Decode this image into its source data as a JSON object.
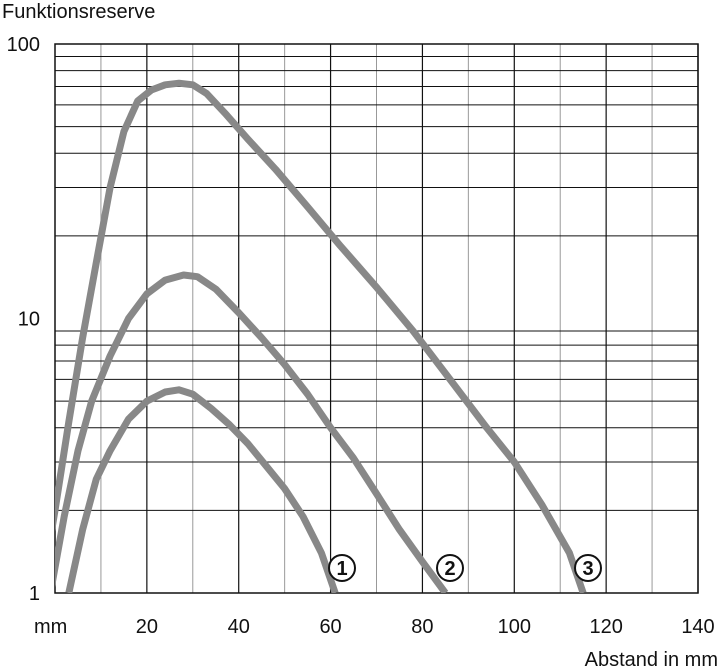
{
  "chart_data": {
    "type": "line",
    "title": "",
    "ylabel": "Funktionsreserve",
    "xlabel": "Abstand in mm",
    "x_unit_label": "mm",
    "yscale": "log",
    "xlim": [
      0,
      140
    ],
    "ylim": [
      1,
      100
    ],
    "x_ticks": [
      20,
      40,
      60,
      80,
      100,
      120,
      140
    ],
    "y_ticks": [
      1,
      10,
      100
    ],
    "grid": true,
    "line_color": "#888888",
    "series": [
      {
        "name": "①",
        "points": [
          [
            3,
            1.0
          ],
          [
            6,
            1.7
          ],
          [
            9,
            2.6
          ],
          [
            12,
            3.3
          ],
          [
            16,
            4.3
          ],
          [
            20,
            5.0
          ],
          [
            24,
            5.4
          ],
          [
            27,
            5.5
          ],
          [
            30,
            5.3
          ],
          [
            34,
            4.7
          ],
          [
            38,
            4.1
          ],
          [
            42,
            3.5
          ],
          [
            46,
            2.9
          ],
          [
            50,
            2.4
          ],
          [
            54,
            1.9
          ],
          [
            58,
            1.4
          ],
          [
            61,
            1.0
          ]
        ]
      },
      {
        "name": "②",
        "points": [
          [
            -1,
            1.0
          ],
          [
            2,
            1.9
          ],
          [
            5,
            3.3
          ],
          [
            8,
            5.0
          ],
          [
            12,
            7.3
          ],
          [
            16,
            10.0
          ],
          [
            20,
            12.3
          ],
          [
            24,
            13.8
          ],
          [
            28,
            14.4
          ],
          [
            31,
            14.2
          ],
          [
            35,
            12.8
          ],
          [
            40,
            10.5
          ],
          [
            45,
            8.5
          ],
          [
            50,
            6.8
          ],
          [
            55,
            5.3
          ],
          [
            60,
            4.0
          ],
          [
            65,
            3.1
          ],
          [
            70,
            2.3
          ],
          [
            75,
            1.7
          ],
          [
            80,
            1.3
          ],
          [
            85,
            1.0
          ]
        ]
      },
      {
        "name": "③",
        "points": [
          [
            -3,
            1.0
          ],
          [
            0,
            2.0
          ],
          [
            3,
            4.2
          ],
          [
            6,
            8.5
          ],
          [
            9,
            16.0
          ],
          [
            12,
            30.0
          ],
          [
            15,
            48.0
          ],
          [
            18,
            62.0
          ],
          [
            21,
            68.0
          ],
          [
            24,
            71.0
          ],
          [
            27,
            72.0
          ],
          [
            30,
            71.0
          ],
          [
            33,
            66.0
          ],
          [
            37,
            56.0
          ],
          [
            42,
            45.0
          ],
          [
            48,
            35.0
          ],
          [
            55,
            25.5
          ],
          [
            62,
            18.5
          ],
          [
            70,
            13.0
          ],
          [
            78,
            9.0
          ],
          [
            86,
            6.0
          ],
          [
            94,
            4.0
          ],
          [
            100,
            3.0
          ],
          [
            106,
            2.1
          ],
          [
            112,
            1.4
          ],
          [
            115,
            1.0
          ]
        ]
      }
    ]
  }
}
